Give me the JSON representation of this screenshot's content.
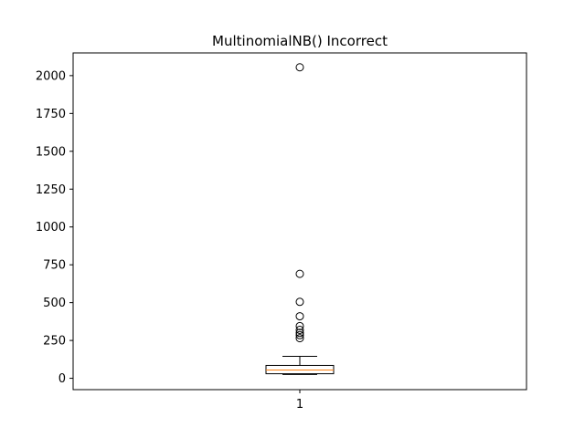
{
  "chart_data": {
    "type": "box",
    "title": "MultinomialNB() Incorrect",
    "xlabel": "",
    "ylabel": "",
    "categories": [
      "1"
    ],
    "ylim": [
      -75,
      2150
    ],
    "yticks": [
      0,
      250,
      500,
      750,
      1000,
      1250,
      1500,
      1750,
      2000
    ],
    "box": {
      "whisker_low": 25,
      "q1": 30,
      "median": 55,
      "q3": 85,
      "whisker_high": 145
    },
    "outliers": [
      265,
      285,
      300,
      320,
      345,
      410,
      505,
      690,
      2055
    ],
    "colors": {
      "box": "#000000",
      "median": "#ff7f0e"
    },
    "grid": false
  }
}
